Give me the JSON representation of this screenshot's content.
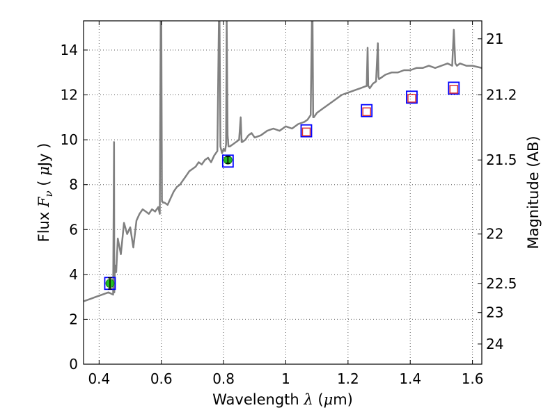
{
  "chart_data": {
    "type": "line",
    "title": "",
    "xlabel": {
      "prefix": "Wavelength  ",
      "symbol": "λ",
      "unit_open": " (",
      "unit_mu": "μ",
      "unit_rest": "m)"
    },
    "ylabel": {
      "prefix": "Flux  ",
      "symbol": "F",
      "subscript": "ν",
      "unit_open": "  (  ",
      "unit_mu": "μ",
      "unit_rest": "Jy  )"
    },
    "y2label": "Magnitude (AB)",
    "xlim": [
      0.35,
      1.63
    ],
    "ylim": [
      0,
      15.3
    ],
    "grid": true,
    "x_ticks": [
      {
        "v": 0.4,
        "label": "0.4"
      },
      {
        "v": 0.6,
        "label": "0.6"
      },
      {
        "v": 0.8,
        "label": "0.8"
      },
      {
        "v": 1.0,
        "label": "1"
      },
      {
        "v": 1.2,
        "label": "1.2"
      },
      {
        "v": 1.4,
        "label": "1.4"
      },
      {
        "v": 1.6,
        "label": "1.6"
      }
    ],
    "y_ticks": [
      {
        "v": 0,
        "label": "0"
      },
      {
        "v": 2,
        "label": "2"
      },
      {
        "v": 4,
        "label": "4"
      },
      {
        "v": 6,
        "label": "6"
      },
      {
        "v": 8,
        "label": "8"
      },
      {
        "v": 10,
        "label": "10"
      },
      {
        "v": 12,
        "label": "12"
      },
      {
        "v": 14,
        "label": "14"
      }
    ],
    "y2_ticks": [
      {
        "flux": 14.5,
        "label": "21"
      },
      {
        "flux": 12.0,
        "label": "21.2"
      },
      {
        "flux": 9.1,
        "label": "21.5"
      },
      {
        "flux": 5.8,
        "label": "22"
      },
      {
        "flux": 3.6,
        "label": "22.5"
      },
      {
        "flux": 2.3,
        "label": "23"
      },
      {
        "flux": 0.9,
        "label": "24"
      }
    ],
    "colors": {
      "spectrum": "#808080",
      "obs": "#22bb22",
      "blue_box": "#0000ff",
      "red_box": "#dd3333",
      "grid": "#555555"
    },
    "spectrum": {
      "name": "",
      "x": [
        0.35,
        0.37,
        0.39,
        0.41,
        0.43,
        0.445,
        0.448,
        0.449,
        0.451,
        0.455,
        0.46,
        0.47,
        0.48,
        0.49,
        0.5,
        0.51,
        0.52,
        0.53,
        0.54,
        0.55,
        0.56,
        0.57,
        0.58,
        0.59,
        0.595,
        0.598,
        0.6,
        0.602,
        0.605,
        0.61,
        0.62,
        0.63,
        0.64,
        0.65,
        0.66,
        0.67,
        0.68,
        0.69,
        0.7,
        0.71,
        0.72,
        0.73,
        0.74,
        0.75,
        0.76,
        0.77,
        0.78,
        0.785,
        0.787,
        0.79,
        0.795,
        0.8,
        0.805,
        0.808,
        0.81,
        0.813,
        0.816,
        0.82,
        0.83,
        0.84,
        0.85,
        0.855,
        0.858,
        0.86,
        0.87,
        0.88,
        0.89,
        0.9,
        0.92,
        0.94,
        0.96,
        0.98,
        1.0,
        1.02,
        1.04,
        1.06,
        1.07,
        1.08,
        1.084,
        1.086,
        1.088,
        1.09,
        1.1,
        1.12,
        1.14,
        1.16,
        1.18,
        1.2,
        1.22,
        1.24,
        1.26,
        1.263,
        1.265,
        1.27,
        1.28,
        1.29,
        1.296,
        1.298,
        1.3,
        1.31,
        1.32,
        1.34,
        1.36,
        1.38,
        1.4,
        1.42,
        1.44,
        1.46,
        1.48,
        1.5,
        1.52,
        1.535,
        1.54,
        1.545,
        1.55,
        1.56,
        1.58,
        1.6,
        1.63
      ],
      "y": [
        2.8,
        2.9,
        3.0,
        3.1,
        3.2,
        3.1,
        9.9,
        3.2,
        4.4,
        4.1,
        5.6,
        4.9,
        6.3,
        5.8,
        6.1,
        5.2,
        6.4,
        6.7,
        6.9,
        6.8,
        6.7,
        6.9,
        6.8,
        7.0,
        6.7,
        15.3,
        15.3,
        7.3,
        7.2,
        7.2,
        7.1,
        7.4,
        7.7,
        7.9,
        8.0,
        8.2,
        8.4,
        8.6,
        8.7,
        8.8,
        9.0,
        8.9,
        9.1,
        9.2,
        9.0,
        9.3,
        9.5,
        15.3,
        15.3,
        9.7,
        9.4,
        9.6,
        9.5,
        9.8,
        15.3,
        10.2,
        9.7,
        9.7,
        9.8,
        9.9,
        10.0,
        11.0,
        9.9,
        9.9,
        10.0,
        10.2,
        10.3,
        10.1,
        10.2,
        10.4,
        10.5,
        10.4,
        10.6,
        10.5,
        10.7,
        10.8,
        10.9,
        11.1,
        15.3,
        15.3,
        11.0,
        11.0,
        11.2,
        11.4,
        11.6,
        11.8,
        12.0,
        12.1,
        12.2,
        12.3,
        12.4,
        14.1,
        12.4,
        12.3,
        12.5,
        12.6,
        14.3,
        12.8,
        12.7,
        12.8,
        12.9,
        13.0,
        13.0,
        13.1,
        13.1,
        13.2,
        13.2,
        13.3,
        13.2,
        13.3,
        13.4,
        13.3,
        14.9,
        13.4,
        13.3,
        13.4,
        13.3,
        13.3,
        13.2
      ]
    },
    "observed": [
      {
        "x": 0.435,
        "y": 3.6,
        "yerr": 0.25
      },
      {
        "x": 0.814,
        "y": 9.1,
        "yerr": 0.15
      }
    ],
    "model_boxes": [
      {
        "x": 0.435,
        "y": 3.6
      },
      {
        "x": 0.814,
        "y": 9.05
      },
      {
        "x": 1.066,
        "y": 10.4
      },
      {
        "x": 1.26,
        "y": 11.3
      },
      {
        "x": 1.405,
        "y": 11.9
      },
      {
        "x": 1.54,
        "y": 12.3
      }
    ],
    "model_points_red": [
      {
        "x": 1.066,
        "y": 10.35
      },
      {
        "x": 1.26,
        "y": 11.25
      },
      {
        "x": 1.405,
        "y": 11.85
      },
      {
        "x": 1.54,
        "y": 12.25
      }
    ]
  }
}
